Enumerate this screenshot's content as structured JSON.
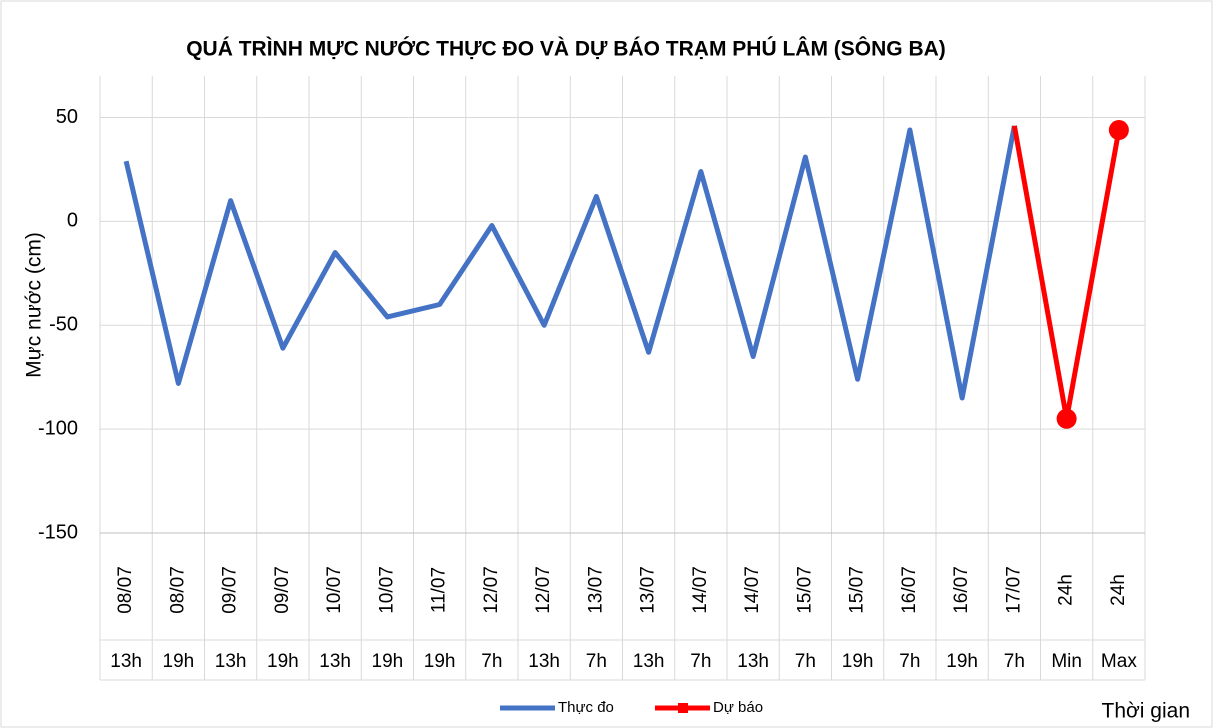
{
  "chart_data": {
    "type": "line",
    "title": "QUÁ TRÌNH MỰC NƯỚC THỰC ĐO VÀ DỰ BÁO TRẠM PHÚ LÂM (SÔNG BA)",
    "ylabel": "Mực nước (cm)",
    "xlabel": "Thời gian",
    "categories": [
      "08/07",
      "08/07",
      "09/07",
      "09/07",
      "10/07",
      "10/07",
      "11/07",
      "12/07",
      "12/07",
      "13/07",
      "13/07",
      "14/07",
      "14/07",
      "15/07",
      "15/07",
      "16/07",
      "16/07",
      "17/07",
      "24h",
      "24h"
    ],
    "sub_categories": [
      "13h",
      "19h",
      "13h",
      "19h",
      "13h",
      "19h",
      "19h",
      "7h",
      "13h",
      "7h",
      "13h",
      "7h",
      "13h",
      "7h",
      "19h",
      "7h",
      "19h",
      "7h",
      "Min",
      "Max"
    ],
    "series": [
      {
        "name": "Thực đo",
        "color": "#4472c4",
        "values": [
          29,
          -78,
          10,
          -61,
          -15,
          -46,
          -40,
          -2,
          -50,
          12,
          -63,
          24,
          -65,
          31,
          -76,
          44,
          -85,
          46,
          null,
          null
        ]
      },
      {
        "name": "Dự báo",
        "color": "#ff0000",
        "marker": true,
        "values": [
          null,
          null,
          null,
          null,
          null,
          null,
          null,
          null,
          null,
          null,
          null,
          null,
          null,
          null,
          null,
          null,
          null,
          46,
          -95,
          44
        ]
      }
    ],
    "ylim": [
      -150,
      70
    ],
    "yticks": [
      -150,
      -100,
      -50,
      0,
      50
    ],
    "grid": true,
    "legend": "bottom"
  }
}
